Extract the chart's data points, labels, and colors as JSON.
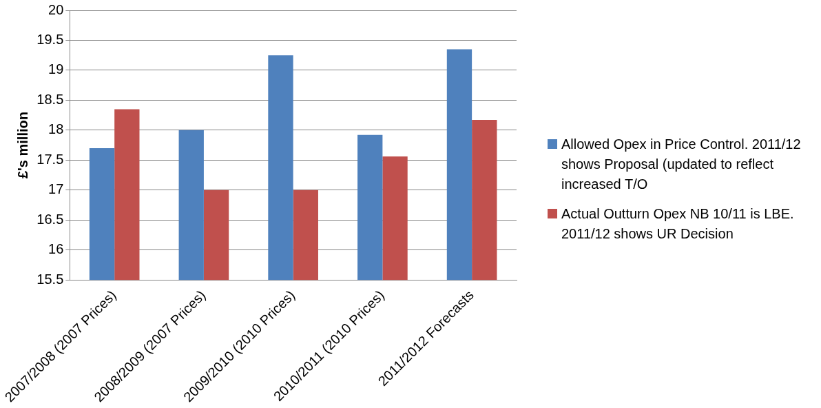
{
  "chart_data": {
    "type": "bar",
    "ylabel": "£'s million",
    "categories": [
      "2007/2008 (2007 Prices)",
      "2008/2009 (2007 Prices)",
      "2009/2010 (2010 Prices)",
      "2010/2011 (2010 Prices)",
      "2011/2012 Forecasts"
    ],
    "series": [
      {
        "name": "Allowed Opex in Price Control. 2011/12 shows Proposal (updated to reflect increased T/O",
        "color": "#4f81bd",
        "values": [
          17.7,
          18.0,
          19.25,
          17.92,
          19.35
        ]
      },
      {
        "name": "Actual Outturn Opex NB 10/11 is LBE. 2011/12 shows UR Decision",
        "color": "#c0504d",
        "values": [
          18.35,
          17.0,
          17.0,
          17.56,
          18.17
        ]
      }
    ],
    "ylim": [
      15.5,
      20
    ],
    "yticks": [
      15.5,
      16,
      16.5,
      17,
      17.5,
      18,
      18.5,
      19,
      19.5,
      20
    ],
    "grid": "y",
    "legend": "right"
  }
}
